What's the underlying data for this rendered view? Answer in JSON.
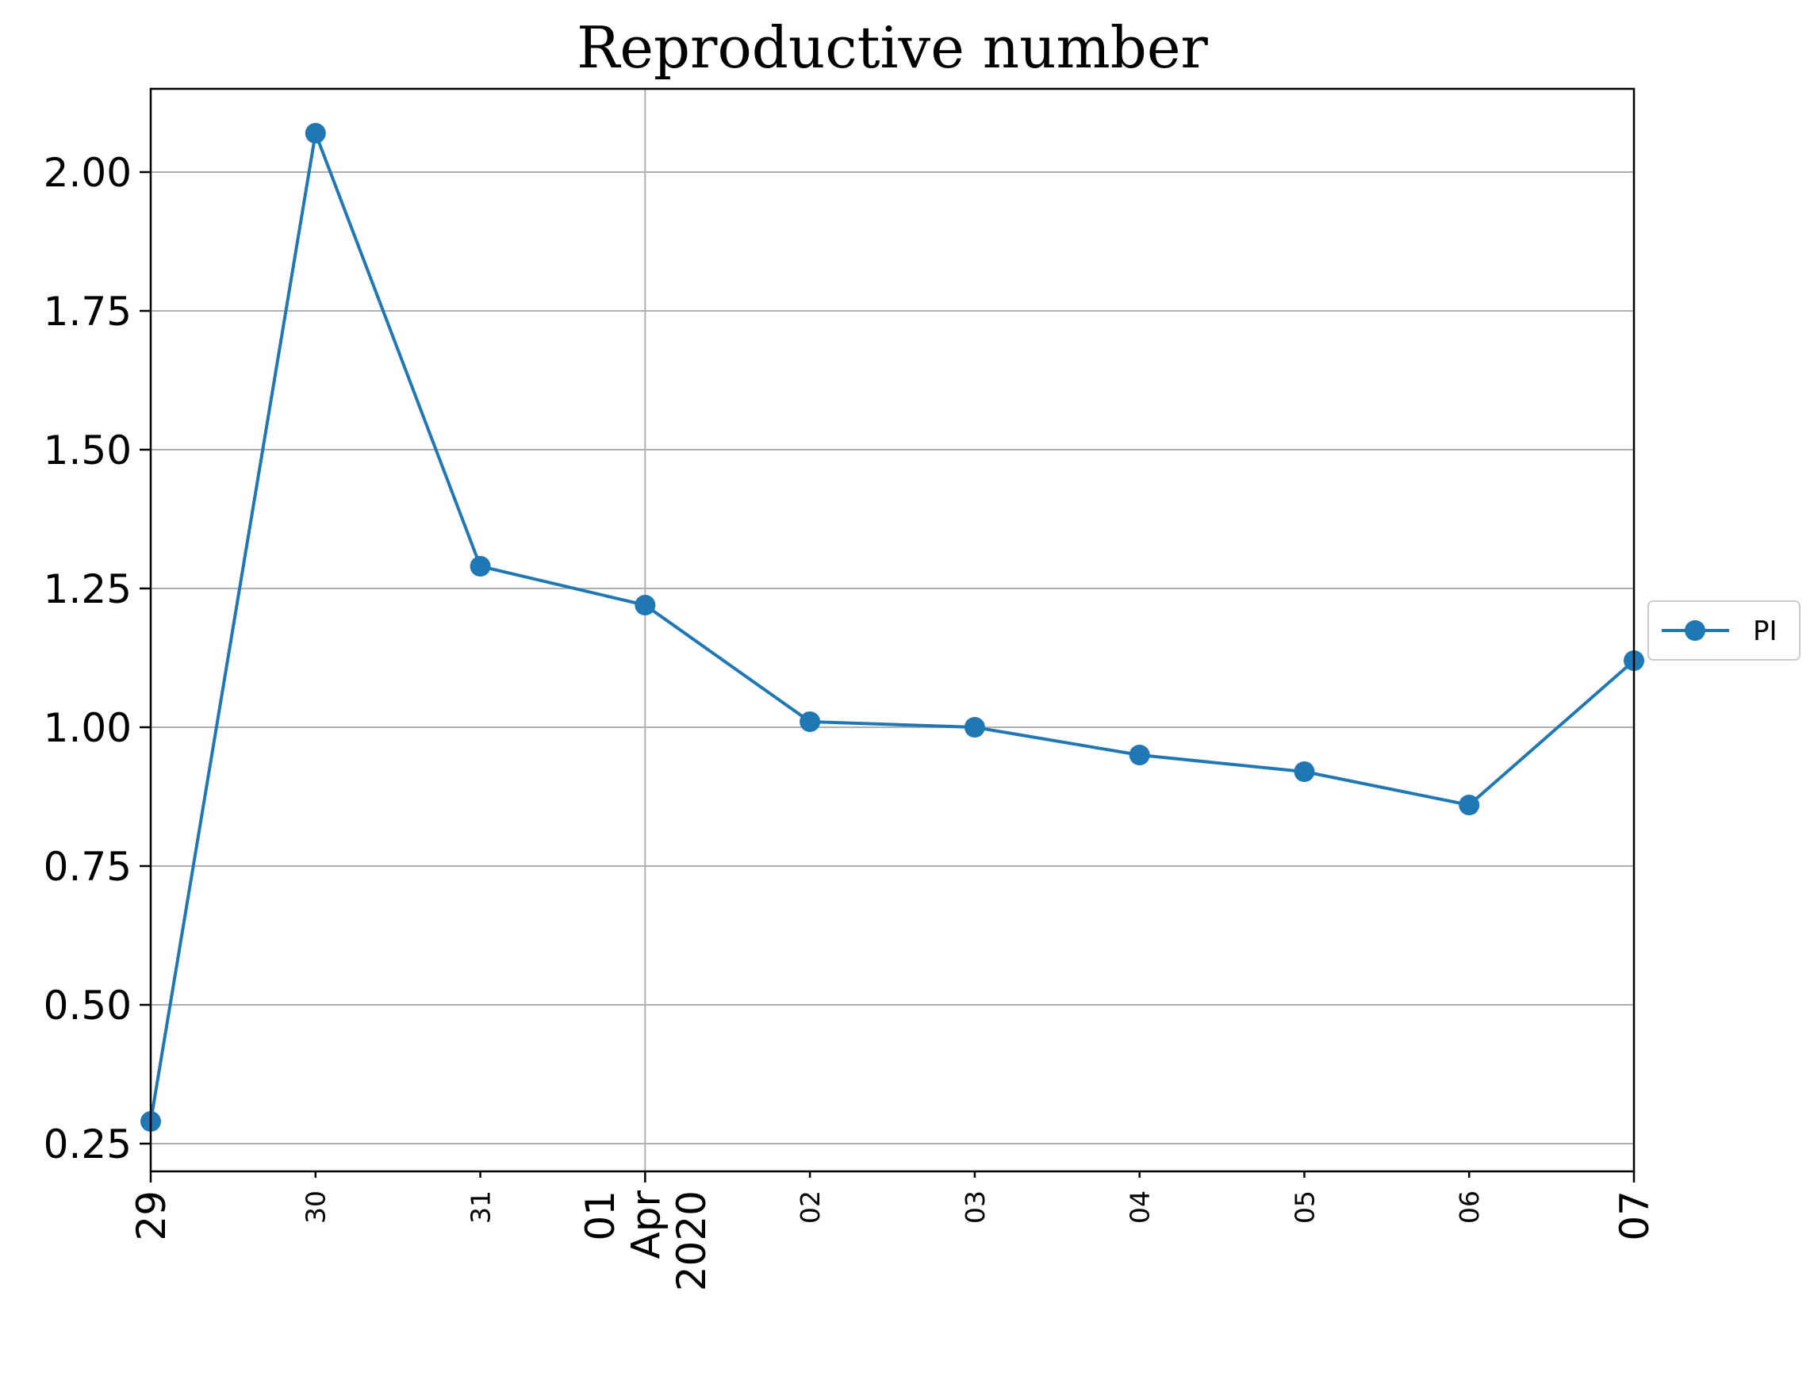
{
  "chart_data": {
    "type": "line",
    "title": "Reproductive number",
    "xlabel": "",
    "ylabel": "",
    "x": [
      "2020-03-29",
      "2020-03-30",
      "2020-03-31",
      "2020-04-01",
      "2020-04-02",
      "2020-04-03",
      "2020-04-04",
      "2020-04-05",
      "2020-04-06",
      "2020-04-07"
    ],
    "xtick_labels": [
      {
        "lines": [
          "29"
        ],
        "style": "major"
      },
      {
        "lines": [
          "30"
        ],
        "style": "minor"
      },
      {
        "lines": [
          "31"
        ],
        "style": "minor"
      },
      {
        "lines": [
          "01",
          "Apr",
          "2020"
        ],
        "style": "major"
      },
      {
        "lines": [
          "02"
        ],
        "style": "minor"
      },
      {
        "lines": [
          "03"
        ],
        "style": "minor"
      },
      {
        "lines": [
          "04"
        ],
        "style": "minor"
      },
      {
        "lines": [
          "05"
        ],
        "style": "minor"
      },
      {
        "lines": [
          "06"
        ],
        "style": "minor"
      },
      {
        "lines": [
          "07"
        ],
        "style": "major"
      }
    ],
    "yticks": [
      "0.25",
      "0.50",
      "0.75",
      "1.00",
      "1.25",
      "1.50",
      "1.75",
      "2.00"
    ],
    "ylim": [
      0.2,
      2.15
    ],
    "grid": true,
    "legend_position": "outside-right",
    "series": [
      {
        "name": "PI",
        "color": "#1f77b4",
        "marker": "circle",
        "values": [
          0.29,
          2.07,
          1.29,
          1.22,
          1.01,
          1.0,
          0.95,
          0.92,
          0.86,
          1.12
        ]
      }
    ]
  }
}
